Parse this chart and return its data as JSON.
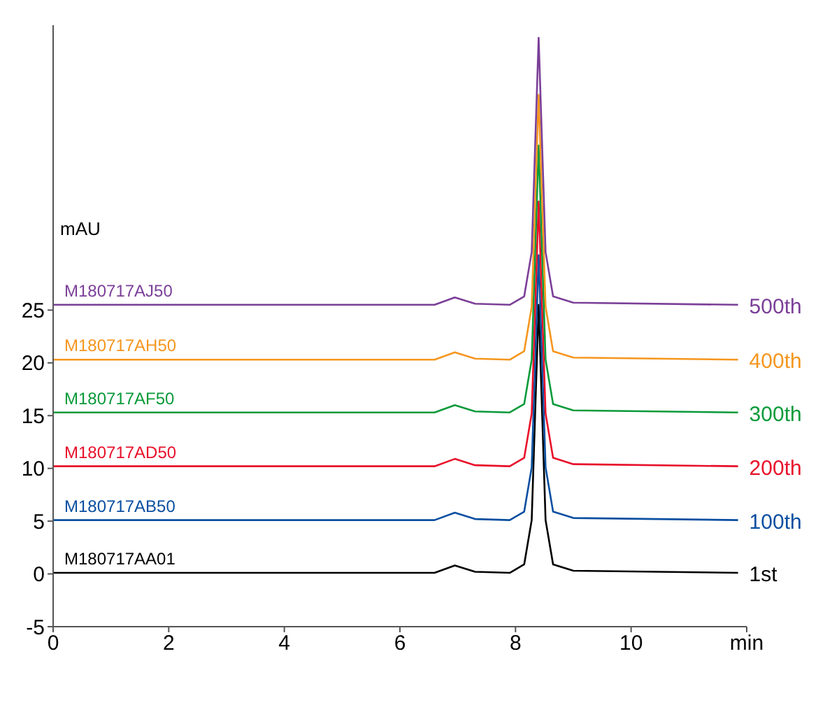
{
  "chart_data": {
    "type": "line",
    "ylabel": "mAU",
    "x": [
      0,
      6.6,
      6.95,
      7.3,
      7.9,
      8.15,
      8.28,
      8.4,
      8.52,
      8.65,
      9.0,
      11.85
    ],
    "series": [
      {
        "name": "1st",
        "color": "#000000",
        "values": [
          0.1,
          0.1,
          0.8,
          0.2,
          0.1,
          0.9,
          5.1,
          25.5,
          5.1,
          0.9,
          0.3,
          0.1
        ]
      },
      {
        "name": "100th",
        "color": "#0a4fa0",
        "values": [
          5.1,
          5.1,
          5.8,
          5.2,
          5.1,
          5.9,
          10.1,
          30.2,
          10.1,
          5.9,
          5.3,
          5.1
        ]
      },
      {
        "name": "200th",
        "color": "#e8102a",
        "values": [
          10.2,
          10.2,
          10.9,
          10.3,
          10.2,
          11.0,
          15.2,
          35.3,
          15.2,
          11.0,
          10.4,
          10.2
        ]
      },
      {
        "name": "300th",
        "color": "#0a9a3a",
        "values": [
          15.3,
          15.3,
          16.0,
          15.4,
          15.3,
          16.1,
          20.3,
          40.6,
          20.3,
          16.1,
          15.5,
          15.3
        ]
      },
      {
        "name": "400th",
        "color": "#f5961e",
        "values": [
          20.3,
          20.3,
          21.0,
          20.4,
          20.3,
          21.1,
          25.3,
          45.4,
          25.3,
          21.1,
          20.5,
          20.3
        ]
      },
      {
        "name": "500th",
        "color": "#7b3f98",
        "values": [
          25.5,
          25.5,
          26.2,
          25.6,
          25.5,
          26.3,
          30.5,
          50.8,
          30.5,
          26.3,
          25.7,
          25.5
        ]
      }
    ],
    "annotations": [
      "M180717AA01",
      "M180717AB50",
      "M180717AD50",
      "M180717AF50",
      "M180717AH50",
      "M180717AJ50"
    ],
    "xlim": [
      0,
      12
    ],
    "xticks": [
      0,
      2,
      4,
      6,
      8,
      10,
      {
        "value": 12,
        "label": "min"
      }
    ],
    "ylim": [
      -5,
      52
    ],
    "yticks": [
      -5,
      0,
      5,
      10,
      15,
      20,
      25
    ],
    "grid": false,
    "legend": false,
    "marker": "none",
    "line_style": "solid"
  }
}
